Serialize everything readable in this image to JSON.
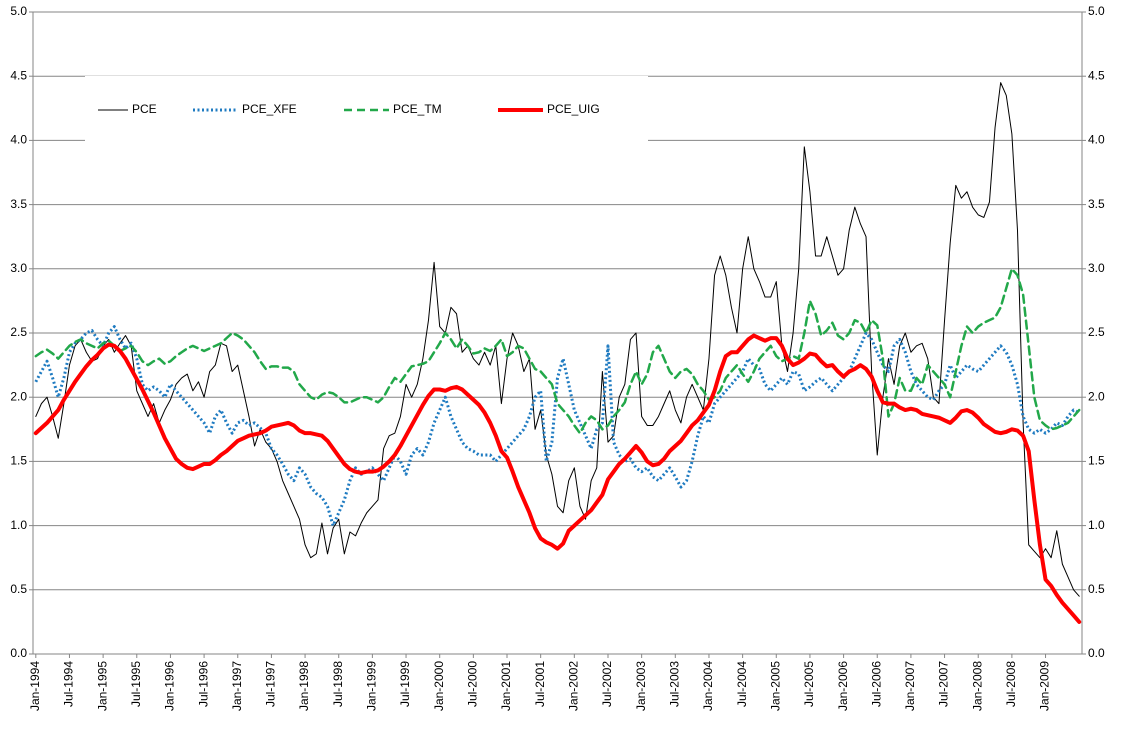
{
  "chart_data": {
    "type": "line",
    "categories": [
      "Jan-1994",
      null,
      null,
      null,
      null,
      null,
      "Jul-1994",
      null,
      null,
      null,
      null,
      null,
      "Jan-1995",
      null,
      null,
      null,
      null,
      null,
      "Jul-1995",
      null,
      null,
      null,
      null,
      null,
      "Jan-1996",
      null,
      null,
      null,
      null,
      null,
      "Jul-1996",
      null,
      null,
      null,
      null,
      null,
      "Jan-1997",
      null,
      null,
      null,
      null,
      null,
      "Jul-1997",
      null,
      null,
      null,
      null,
      null,
      "Jan-1998",
      null,
      null,
      null,
      null,
      null,
      "Jul-1998",
      null,
      null,
      null,
      null,
      null,
      "Jan-1999",
      null,
      null,
      null,
      null,
      null,
      "Jul-1999",
      null,
      null,
      null,
      null,
      null,
      "Jan-2000",
      null,
      null,
      null,
      null,
      null,
      "Jul-2000",
      null,
      null,
      null,
      null,
      null,
      "Jan-2001",
      null,
      null,
      null,
      null,
      null,
      "Jul-2001",
      null,
      null,
      null,
      null,
      null,
      "Jan-2002",
      null,
      null,
      null,
      null,
      null,
      "Jul-2002",
      null,
      null,
      null,
      null,
      null,
      "Jan-2003",
      null,
      null,
      null,
      null,
      null,
      "Jul-2003",
      null,
      null,
      null,
      null,
      null,
      "Jan-2004",
      null,
      null,
      null,
      null,
      null,
      "Jul-2004",
      null,
      null,
      null,
      null,
      null,
      "Jan-2005",
      null,
      null,
      null,
      null,
      null,
      "Jul-2005",
      null,
      null,
      null,
      null,
      null,
      "Jan-2006",
      null,
      null,
      null,
      null,
      null,
      "Jul-2006",
      null,
      null,
      null,
      null,
      null,
      "Jan-2007",
      null,
      null,
      null,
      null,
      null,
      "Jul-2007",
      null,
      null,
      null,
      null,
      null,
      "Jan-2008",
      null,
      null,
      null,
      null,
      null,
      "Jul-2008",
      null,
      null,
      null,
      null,
      null,
      "Jan-2009",
      null,
      null,
      null,
      null,
      null,
      null
    ],
    "series": [
      {
        "name": "PCE",
        "color": "#000000",
        "width": 1,
        "style": "solid",
        "values": [
          1.85,
          1.95,
          2.0,
          1.85,
          1.68,
          1.95,
          2.25,
          2.4,
          2.45,
          2.35,
          2.28,
          2.3,
          2.4,
          2.45,
          2.35,
          2.42,
          2.48,
          2.4,
          2.05,
          1.95,
          1.85,
          1.95,
          1.8,
          1.9,
          1.98,
          2.1,
          2.15,
          2.18,
          2.05,
          2.12,
          2.0,
          2.2,
          2.25,
          2.42,
          2.4,
          2.2,
          2.25,
          2.05,
          1.85,
          1.62,
          1.75,
          1.65,
          1.6,
          1.5,
          1.35,
          1.25,
          1.15,
          1.05,
          0.85,
          0.75,
          0.78,
          1.02,
          0.78,
          0.98,
          1.05,
          0.78,
          0.95,
          0.92,
          1.02,
          1.1,
          1.15,
          1.2,
          1.6,
          1.7,
          1.72,
          1.85,
          2.1,
          2.0,
          2.1,
          2.3,
          2.6,
          3.05,
          2.55,
          2.5,
          2.7,
          2.65,
          2.35,
          2.4,
          2.3,
          2.25,
          2.35,
          2.25,
          2.4,
          1.95,
          2.3,
          2.5,
          2.4,
          2.2,
          2.3,
          1.75,
          1.9,
          1.55,
          1.4,
          1.15,
          1.1,
          1.35,
          1.45,
          1.15,
          1.05,
          1.35,
          1.45,
          2.2,
          1.65,
          1.7,
          2.0,
          2.1,
          2.45,
          2.5,
          1.85,
          1.78,
          1.78,
          1.85,
          1.95,
          2.05,
          1.9,
          1.8,
          2.0,
          2.1,
          2.0,
          1.9,
          2.3,
          2.95,
          3.1,
          2.95,
          2.7,
          2.5,
          3.0,
          3.25,
          3.0,
          2.9,
          2.78,
          2.78,
          2.9,
          2.4,
          2.2,
          2.5,
          3.0,
          3.95,
          3.6,
          3.1,
          3.1,
          3.25,
          3.1,
          2.95,
          3.0,
          3.3,
          3.48,
          3.35,
          3.25,
          2.2,
          1.55,
          2.0,
          2.3,
          2.1,
          2.4,
          2.5,
          2.35,
          2.4,
          2.42,
          2.3,
          2.0,
          1.95,
          2.6,
          3.2,
          3.65,
          3.55,
          3.6,
          3.48,
          3.42,
          3.4,
          3.52,
          4.1,
          4.45,
          4.35,
          4.05,
          3.3,
          1.8,
          0.85,
          0.8,
          0.75,
          0.82,
          0.75,
          0.96,
          0.7,
          0.6,
          0.5,
          0.45
        ]
      },
      {
        "name": "PCE_XFE",
        "color": "#1f7bc1",
        "width": 3,
        "style": "dotted",
        "values": [
          2.12,
          2.2,
          2.28,
          2.15,
          2.0,
          2.15,
          2.35,
          2.42,
          2.45,
          2.5,
          2.52,
          2.45,
          2.4,
          2.5,
          2.55,
          2.45,
          2.38,
          2.42,
          2.3,
          2.1,
          2.05,
          2.08,
          2.05,
          2.0,
          2.1,
          2.05,
          2.0,
          1.95,
          1.9,
          1.85,
          1.8,
          1.72,
          1.85,
          1.9,
          1.8,
          1.72,
          1.8,
          1.82,
          1.78,
          1.8,
          1.76,
          1.72,
          1.6,
          1.55,
          1.48,
          1.4,
          1.35,
          1.45,
          1.4,
          1.3,
          1.25,
          1.22,
          1.15,
          1.0,
          1.1,
          1.2,
          1.35,
          1.45,
          1.4,
          1.42,
          1.45,
          1.4,
          1.35,
          1.45,
          1.55,
          1.5,
          1.4,
          1.55,
          1.6,
          1.55,
          1.65,
          1.8,
          1.9,
          2.0,
          1.85,
          1.75,
          1.65,
          1.6,
          1.58,
          1.55,
          1.55,
          1.55,
          1.5,
          1.55,
          1.6,
          1.65,
          1.7,
          1.75,
          1.85,
          2.0,
          2.05,
          1.5,
          1.65,
          2.15,
          2.3,
          2.1,
          1.9,
          1.8,
          1.7,
          1.6,
          1.75,
          1.8,
          2.4,
          1.65,
          1.55,
          1.5,
          1.52,
          1.45,
          1.42,
          1.45,
          1.38,
          1.35,
          1.4,
          1.45,
          1.38,
          1.3,
          1.35,
          1.5,
          1.7,
          1.85,
          1.8,
          1.95,
          2.0,
          2.05,
          2.1,
          2.15,
          2.2,
          2.3,
          2.25,
          2.22,
          2.1,
          2.05,
          2.1,
          2.15,
          2.1,
          2.2,
          2.18,
          2.05,
          2.08,
          2.12,
          2.15,
          2.1,
          2.05,
          2.1,
          2.15,
          2.2,
          2.3,
          2.4,
          2.5,
          2.45,
          2.35,
          2.25,
          2.2,
          2.4,
          2.45,
          2.35,
          2.2,
          2.1,
          2.05,
          2.0,
          1.98,
          2.05,
          2.1,
          2.25,
          2.15,
          2.2,
          2.25,
          2.22,
          2.2,
          2.25,
          2.3,
          2.35,
          2.4,
          2.35,
          2.25,
          2.1,
          1.85,
          1.75,
          1.72,
          1.75,
          1.72,
          1.75,
          1.8,
          1.78,
          1.85,
          1.9,
          1.88
        ]
      },
      {
        "name": "PCE_TM",
        "color": "#22a84a",
        "width": 2.5,
        "style": "dashed",
        "values": [
          2.32,
          2.35,
          2.37,
          2.34,
          2.3,
          2.35,
          2.4,
          2.43,
          2.45,
          2.42,
          2.4,
          2.38,
          2.42,
          2.44,
          2.4,
          2.36,
          2.38,
          2.4,
          2.35,
          2.28,
          2.25,
          2.28,
          2.3,
          2.26,
          2.28,
          2.32,
          2.35,
          2.38,
          2.4,
          2.38,
          2.36,
          2.38,
          2.4,
          2.42,
          2.46,
          2.5,
          2.48,
          2.45,
          2.4,
          2.35,
          2.28,
          2.22,
          2.24,
          2.24,
          2.23,
          2.23,
          2.2,
          2.1,
          2.05,
          2.0,
          1.98,
          2.02,
          2.04,
          2.03,
          2.0,
          1.96,
          1.96,
          1.98,
          2.0,
          2.0,
          1.98,
          1.96,
          2.0,
          2.08,
          2.15,
          2.12,
          2.18,
          2.24,
          2.25,
          2.26,
          2.28,
          2.35,
          2.42,
          2.5,
          2.45,
          2.38,
          2.45,
          2.4,
          2.34,
          2.35,
          2.38,
          2.36,
          2.4,
          2.45,
          2.32,
          2.35,
          2.4,
          2.38,
          2.3,
          2.22,
          2.2,
          2.15,
          2.1,
          1.95,
          1.9,
          1.85,
          1.78,
          1.72,
          1.8,
          1.85,
          1.82,
          1.75,
          1.78,
          1.85,
          1.9,
          1.96,
          2.1,
          2.2,
          2.1,
          2.18,
          2.35,
          2.4,
          2.3,
          2.2,
          2.15,
          2.2,
          2.22,
          2.18,
          2.1,
          2.05,
          1.98,
          2.0,
          2.05,
          2.15,
          2.2,
          2.25,
          2.18,
          2.12,
          2.2,
          2.3,
          2.35,
          2.4,
          2.32,
          2.28,
          2.3,
          2.32,
          2.3,
          2.5,
          2.75,
          2.65,
          2.48,
          2.52,
          2.58,
          2.48,
          2.45,
          2.5,
          2.6,
          2.58,
          2.5,
          2.6,
          2.56,
          2.3,
          1.85,
          1.95,
          2.15,
          2.05,
          2.05,
          2.15,
          2.1,
          2.25,
          2.2,
          2.15,
          2.1,
          2.0,
          2.2,
          2.4,
          2.55,
          2.5,
          2.55,
          2.58,
          2.6,
          2.62,
          2.7,
          2.85,
          3.0,
          2.95,
          2.8,
          2.4,
          2.0,
          1.82,
          1.78,
          1.75,
          1.76,
          1.78,
          1.8,
          1.85,
          1.9
        ]
      },
      {
        "name": "PCE_UIG",
        "color": "#ff0000",
        "width": 4,
        "style": "solid",
        "values": [
          1.72,
          1.76,
          1.8,
          1.85,
          1.9,
          1.98,
          2.05,
          2.12,
          2.18,
          2.24,
          2.29,
          2.33,
          2.38,
          2.41,
          2.4,
          2.36,
          2.3,
          2.22,
          2.14,
          2.06,
          1.97,
          1.88,
          1.78,
          1.68,
          1.6,
          1.52,
          1.48,
          1.45,
          1.44,
          1.46,
          1.48,
          1.48,
          1.51,
          1.55,
          1.58,
          1.62,
          1.66,
          1.68,
          1.7,
          1.71,
          1.72,
          1.74,
          1.77,
          1.78,
          1.79,
          1.8,
          1.78,
          1.74,
          1.72,
          1.72,
          1.71,
          1.7,
          1.66,
          1.6,
          1.54,
          1.48,
          1.44,
          1.42,
          1.41,
          1.42,
          1.42,
          1.43,
          1.46,
          1.5,
          1.55,
          1.62,
          1.7,
          1.78,
          1.86,
          1.94,
          2.01,
          2.06,
          2.06,
          2.05,
          2.07,
          2.08,
          2.06,
          2.02,
          1.98,
          1.94,
          1.88,
          1.8,
          1.7,
          1.58,
          1.53,
          1.42,
          1.3,
          1.2,
          1.1,
          0.98,
          0.9,
          0.87,
          0.85,
          0.82,
          0.86,
          0.96,
          1.0,
          1.04,
          1.08,
          1.12,
          1.18,
          1.24,
          1.36,
          1.42,
          1.48,
          1.52,
          1.57,
          1.62,
          1.57,
          1.5,
          1.47,
          1.48,
          1.52,
          1.58,
          1.62,
          1.66,
          1.72,
          1.78,
          1.82,
          1.88,
          1.94,
          2.05,
          2.2,
          2.32,
          2.35,
          2.35,
          2.4,
          2.45,
          2.48,
          2.46,
          2.44,
          2.46,
          2.46,
          2.4,
          2.3,
          2.25,
          2.27,
          2.3,
          2.34,
          2.33,
          2.28,
          2.24,
          2.25,
          2.2,
          2.16,
          2.2,
          2.22,
          2.25,
          2.22,
          2.16,
          2.05,
          1.96,
          1.95,
          1.95,
          1.92,
          1.9,
          1.91,
          1.9,
          1.87,
          1.86,
          1.85,
          1.84,
          1.82,
          1.8,
          1.84,
          1.89,
          1.9,
          1.88,
          1.84,
          1.79,
          1.76,
          1.73,
          1.72,
          1.73,
          1.75,
          1.74,
          1.7,
          1.58,
          1.2,
          0.85,
          0.58,
          0.53,
          0.46,
          0.4,
          0.35,
          0.3,
          0.25
        ]
      }
    ],
    "ylim": [
      0,
      5
    ],
    "yticks": [
      {
        "value": 0,
        "label": "0.0"
      },
      {
        "value": 0.5,
        "label": "0.5"
      },
      {
        "value": 1,
        "label": "1.0"
      },
      {
        "value": 1.5,
        "label": "1.5"
      },
      {
        "value": 2,
        "label": "2.0"
      },
      {
        "value": 2.5,
        "label": "2.5"
      },
      {
        "value": 3,
        "label": "3.0"
      },
      {
        "value": 3.5,
        "label": "3.5"
      },
      {
        "value": 4,
        "label": "4.0"
      },
      {
        "value": 4.5,
        "label": "4.5"
      },
      {
        "value": 5,
        "label": "5.0"
      }
    ],
    "y2lim": [
      0,
      5
    ],
    "y2ticks": [
      {
        "value": 0,
        "label": "0.0"
      },
      {
        "value": 0.5,
        "label": "0.5"
      },
      {
        "value": 1,
        "label": "1.0"
      },
      {
        "value": 1.5,
        "label": "1.5"
      },
      {
        "value": 2,
        "label": "2.0"
      },
      {
        "value": 2.5,
        "label": "2.5"
      },
      {
        "value": 3,
        "label": "3.0"
      },
      {
        "value": 3.5,
        "label": "3.5"
      },
      {
        "value": 4,
        "label": "4.0"
      },
      {
        "value": 4.5,
        "label": "4.5"
      },
      {
        "value": 5,
        "label": "5.0"
      }
    ],
    "grid": true,
    "legend": "upper left"
  }
}
